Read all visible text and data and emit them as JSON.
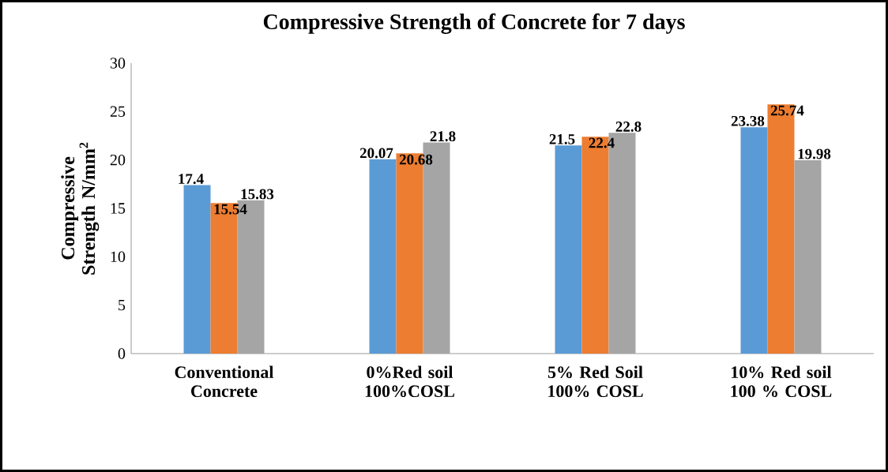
{
  "chart_data": {
    "type": "bar",
    "title": "Compressive Strength of Concrete for 7 days",
    "ylabel": "Compressive Strength N/mm$^{2}$",
    "categories": [
      "Conventional Concrete",
      "0%Red soil 100%COSL",
      "5% Red Soil 100% COSL",
      "10% Red soil 100 % COSL"
    ],
    "series": [
      {
        "color": "#5b9bd5",
        "values": [
          17.4,
          20.07,
          21.5,
          23.38
        ]
      },
      {
        "color": "#ed7d31",
        "values": [
          15.54,
          20.68,
          22.4,
          25.74
        ]
      },
      {
        "color": "#a5a5a5",
        "values": [
          15.83,
          21.8,
          22.8,
          19.98
        ]
      }
    ],
    "ylim": [
      0,
      30
    ],
    "yticks": [
      0,
      5,
      10,
      15,
      20,
      25,
      30
    ],
    "data_labels": true,
    "grid": false,
    "legend": false
  }
}
